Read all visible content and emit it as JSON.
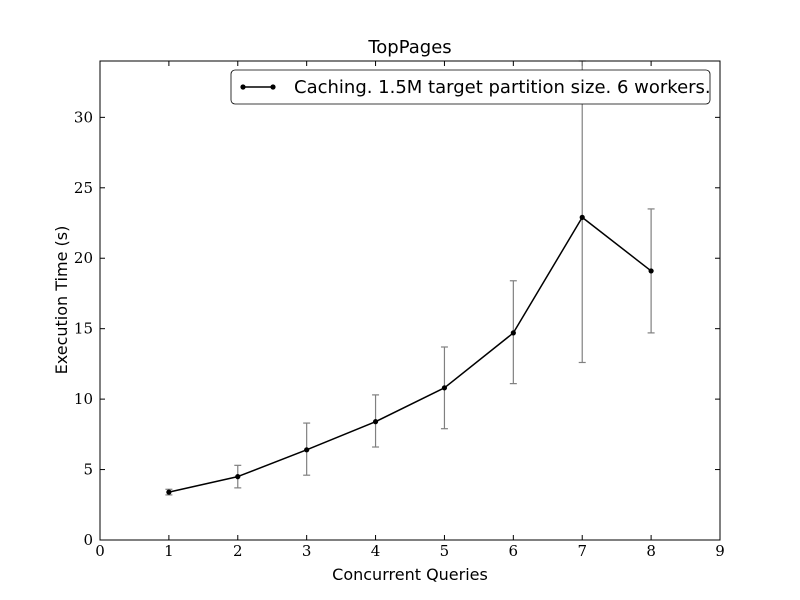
{
  "chart_data": {
    "type": "line",
    "title": "TopPages",
    "xlabel": "Concurrent Queries",
    "ylabel": "Execution Time (s)",
    "xlim": [
      0,
      9
    ],
    "ylim": [
      0,
      34
    ],
    "x_ticks": [
      0,
      1,
      2,
      3,
      4,
      5,
      6,
      7,
      8,
      9
    ],
    "y_ticks": [
      0,
      5,
      10,
      15,
      20,
      25,
      30
    ],
    "grid": false,
    "legend_position": "top-right",
    "series": [
      {
        "name": "Caching. 1.5M target partition size. 6 workers.",
        "color": "#000000",
        "errorbar_color": "#808080",
        "x": [
          1,
          2,
          3,
          4,
          5,
          6,
          7,
          8
        ],
        "y": [
          3.4,
          4.5,
          6.4,
          8.4,
          10.8,
          14.7,
          22.9,
          19.1
        ],
        "yerr_lower": [
          3.2,
          3.7,
          4.6,
          6.6,
          7.9,
          11.1,
          12.6,
          14.7
        ],
        "yerr_upper": [
          3.6,
          5.3,
          8.3,
          10.3,
          13.7,
          18.4,
          34.0,
          23.5
        ]
      }
    ]
  }
}
